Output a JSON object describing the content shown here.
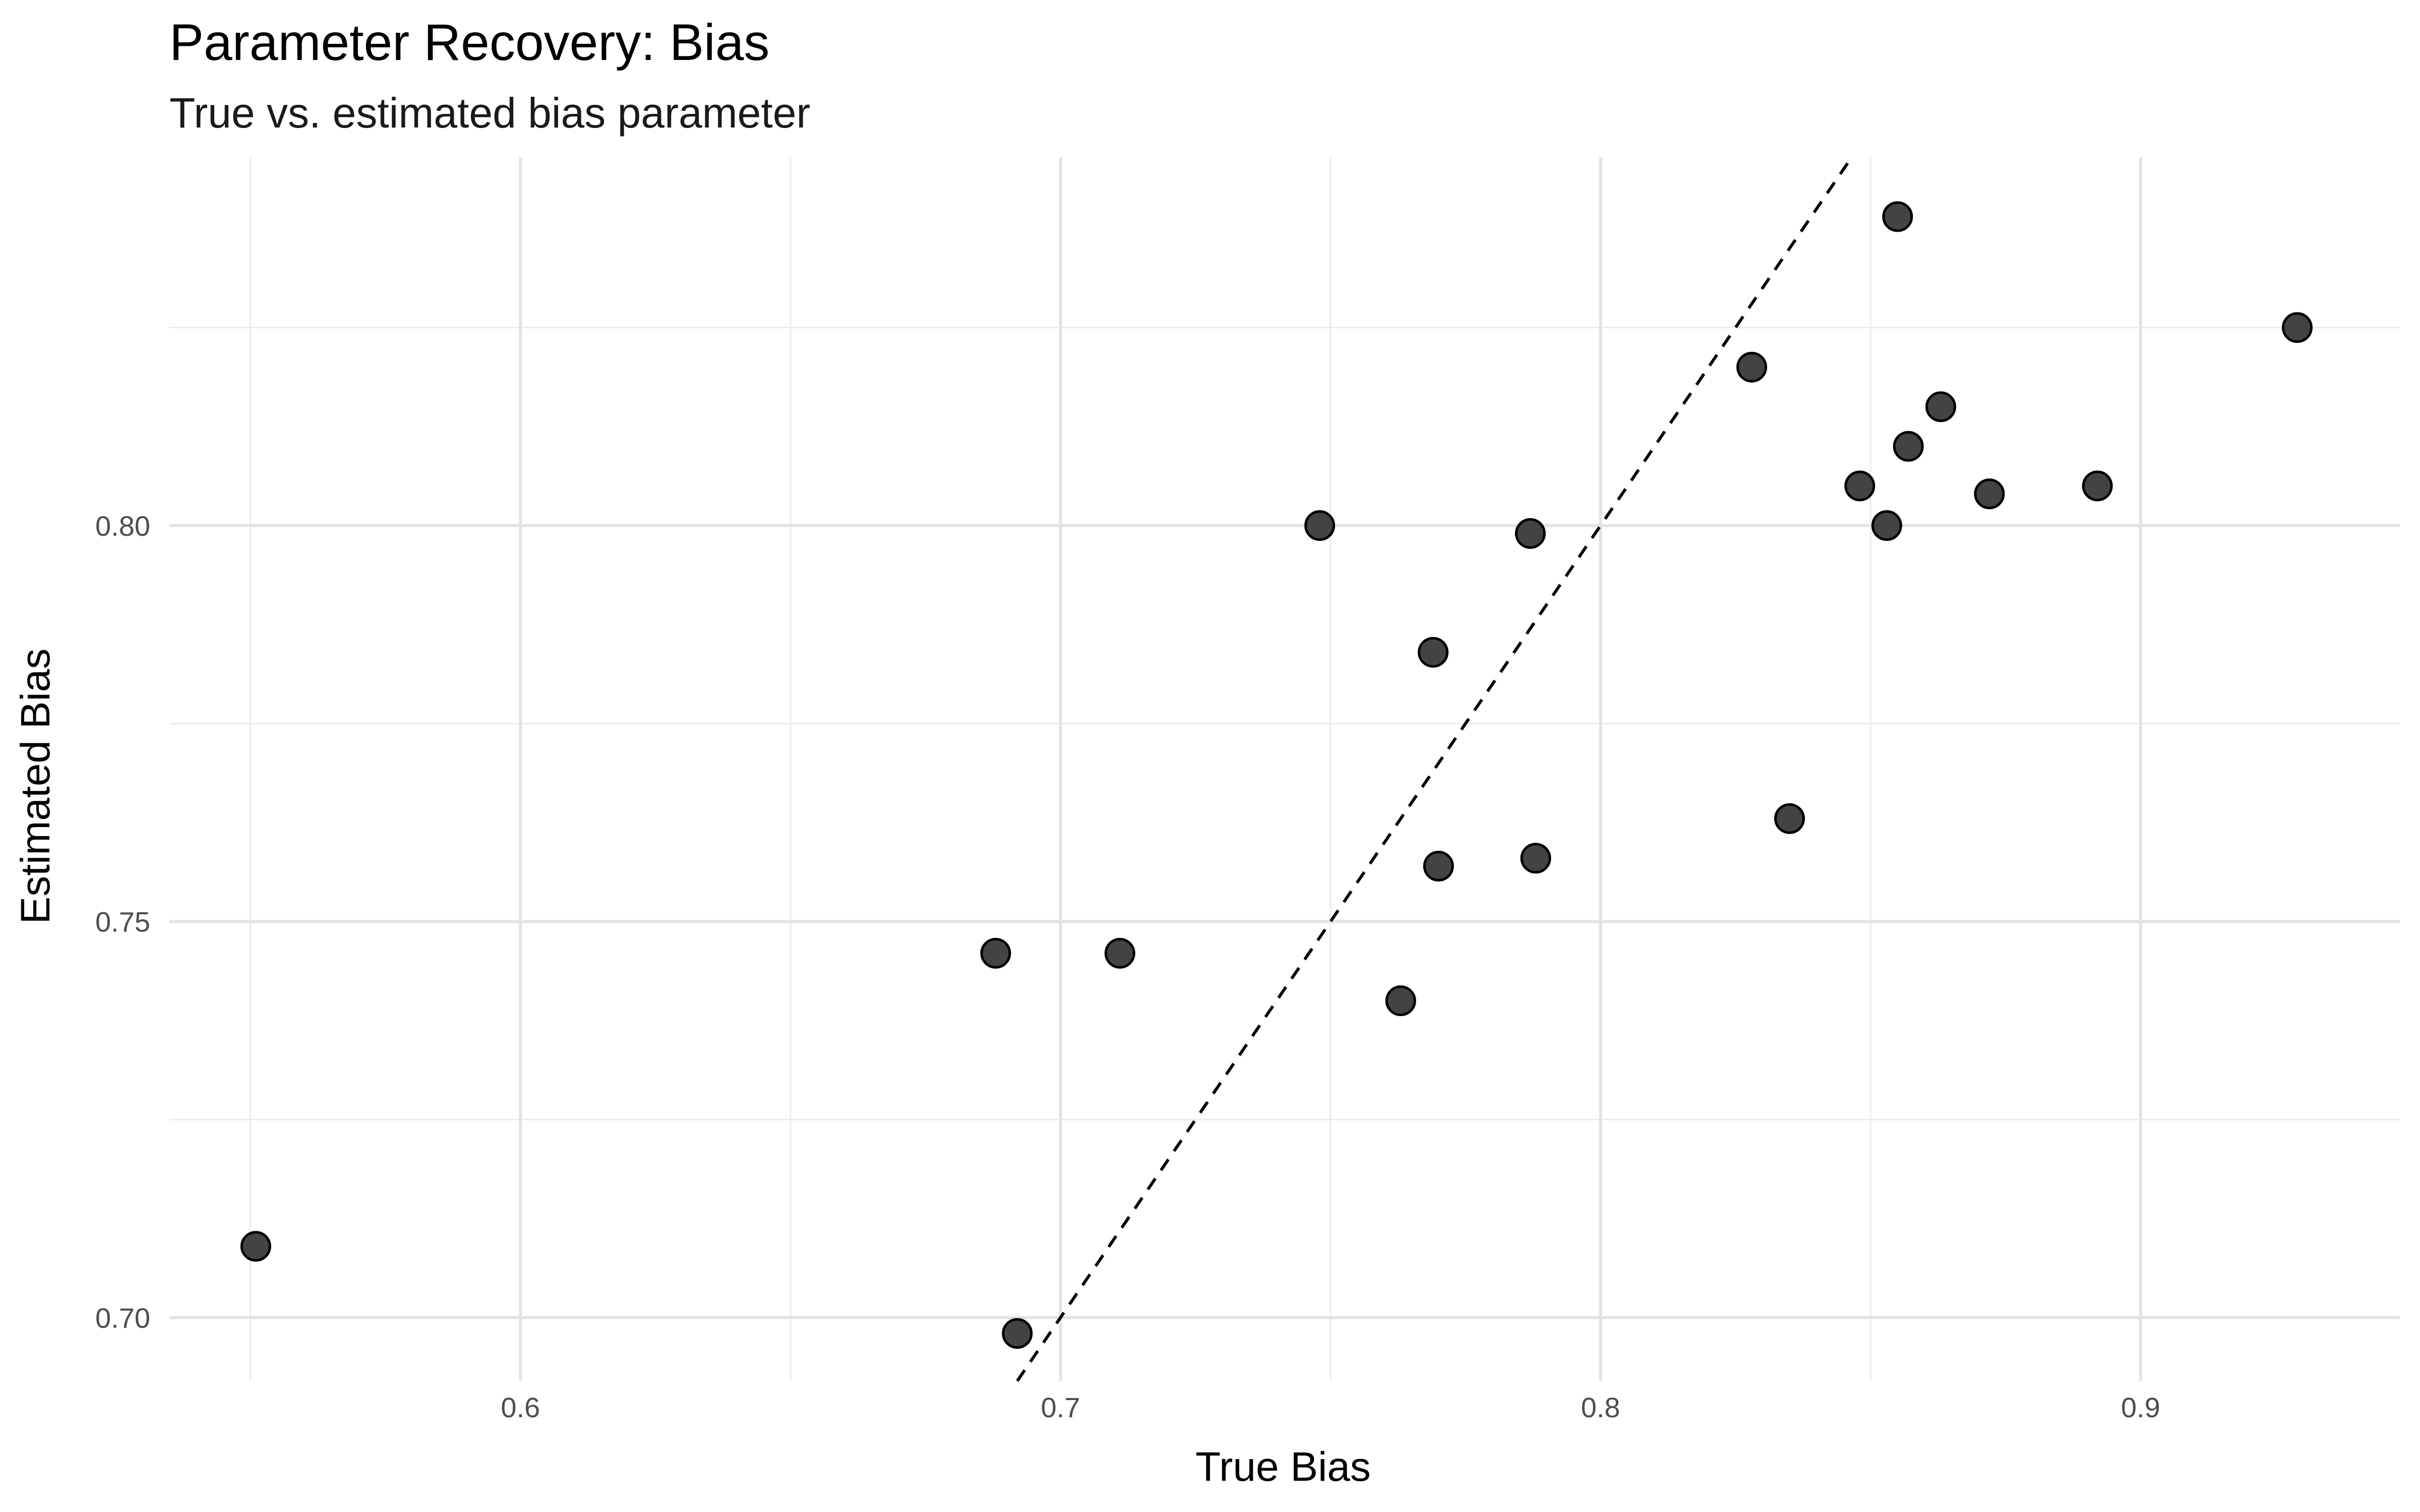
{
  "chart_data": {
    "type": "scatter",
    "title": "Parameter Recovery: Bias",
    "subtitle": "True vs. estimated bias parameter",
    "xlabel": "True Bias",
    "ylabel": "Estimated Bias",
    "xlim": [
      0.535,
      0.948
    ],
    "ylim": [
      0.692,
      0.8465
    ],
    "x_ticks": [
      0.6,
      0.7,
      0.8,
      0.9
    ],
    "x_tick_labels": [
      "0.6",
      "0.7",
      "0.8",
      "0.9"
    ],
    "y_ticks": [
      0.7,
      0.75,
      0.8
    ],
    "y_tick_labels": [
      "0.70",
      "0.75",
      "0.80"
    ],
    "x_minor_grid": [
      0.55,
      0.65,
      0.75,
      0.85
    ],
    "y_minor_grid": [
      0.725,
      0.775,
      0.825
    ],
    "grid": true,
    "reference_line": {
      "type": "identity",
      "style": "dashed",
      "color": "#000000"
    },
    "point_color": "#333333",
    "point_edge_color": "#000000",
    "points": [
      {
        "x": 0.551,
        "y": 0.709
      },
      {
        "x": 0.688,
        "y": 0.746
      },
      {
        "x": 0.692,
        "y": 0.698
      },
      {
        "x": 0.711,
        "y": 0.746
      },
      {
        "x": 0.748,
        "y": 0.8
      },
      {
        "x": 0.763,
        "y": 0.74
      },
      {
        "x": 0.769,
        "y": 0.784
      },
      {
        "x": 0.77,
        "y": 0.757
      },
      {
        "x": 0.787,
        "y": 0.799
      },
      {
        "x": 0.788,
        "y": 0.758
      },
      {
        "x": 0.828,
        "y": 0.82
      },
      {
        "x": 0.835,
        "y": 0.763
      },
      {
        "x": 0.848,
        "y": 0.805
      },
      {
        "x": 0.853,
        "y": 0.8
      },
      {
        "x": 0.855,
        "y": 0.839
      },
      {
        "x": 0.857,
        "y": 0.81
      },
      {
        "x": 0.863,
        "y": 0.815
      },
      {
        "x": 0.872,
        "y": 0.804
      },
      {
        "x": 0.892,
        "y": 0.805
      },
      {
        "x": 0.929,
        "y": 0.825
      }
    ]
  }
}
